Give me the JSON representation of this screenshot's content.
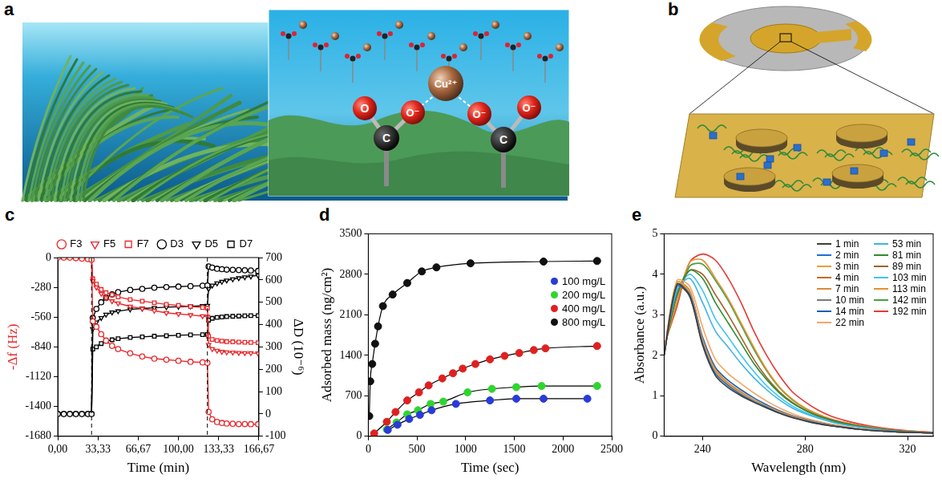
{
  "diagrams": [
    {
      "panel_label": "a",
      "labels": {
        "ion": "Cu²⁺",
        "carbon": "C",
        "oxygen": "O",
        "oxygen_ion": "O⁻"
      }
    },
    {
      "panel_label": "b"
    }
  ],
  "chart_data": [
    {
      "panel_label": "c",
      "type": "line",
      "xlabel": "Time (min)",
      "ylabel": "-Δf (Hz)",
      "y2label": "ΔD (10⁻⁶)",
      "x": [
        0,
        5,
        10,
        15,
        20,
        25,
        28,
        29,
        32,
        36,
        40,
        45,
        50,
        60,
        70,
        80,
        90,
        100,
        110,
        120,
        124,
        125,
        128,
        132,
        136,
        140,
        145,
        150,
        155,
        160,
        166
      ],
      "xlim": [
        0,
        166.67
      ],
      "xticks": [
        {
          "value": 0,
          "label": "0,00"
        },
        {
          "value": 33.33,
          "label": "33,33"
        },
        {
          "value": 66.67,
          "label": "66,67"
        },
        {
          "value": 100,
          "label": "100,00"
        },
        {
          "value": 133.33,
          "label": "133,33"
        },
        {
          "value": 166.67,
          "label": "166,67"
        }
      ],
      "ylim": [
        -1680,
        0
      ],
      "yticks": [
        -1680,
        -1400,
        -1120,
        -840,
        -560,
        -280,
        0
      ],
      "y2lim": [
        -100,
        700
      ],
      "y2ticks": [
        -100,
        0,
        100,
        200,
        300,
        400,
        500,
        600,
        700
      ],
      "vlines": [
        28,
        124
      ],
      "grid": false,
      "legend": "top",
      "series": [
        {
          "name": "F3",
          "color": "#e8282b",
          "marker": "circle",
          "values": [
            0,
            0,
            0,
            -5,
            -10,
            -15,
            -20,
            -600,
            -650,
            -720,
            -780,
            -830,
            -860,
            -900,
            -930,
            -950,
            -960,
            -970,
            -980,
            -985,
            -990,
            -1450,
            -1520,
            -1545,
            -1555,
            -1560,
            -1562,
            -1565,
            -1565,
            -1566,
            -1566
          ]
        },
        {
          "name": "F5",
          "color": "#e8282b",
          "marker": "triangle_down",
          "values": [
            0,
            0,
            0,
            -5,
            -8,
            -12,
            -15,
            -220,
            -280,
            -340,
            -380,
            -410,
            -430,
            -460,
            -480,
            -500,
            -520,
            -530,
            -540,
            -550,
            -555,
            -820,
            -860,
            -875,
            -885,
            -890,
            -892,
            -895,
            -897,
            -898,
            -900
          ]
        },
        {
          "name": "F7",
          "color": "#e8282b",
          "marker": "square",
          "values": [
            0,
            0,
            0,
            -3,
            -6,
            -10,
            -12,
            -200,
            -250,
            -300,
            -330,
            -350,
            -370,
            -395,
            -410,
            -425,
            -440,
            -450,
            -460,
            -470,
            -475,
            -740,
            -770,
            -780,
            -785,
            -790,
            -792,
            -795,
            -797,
            -798,
            -800
          ]
        },
        {
          "name": "D3",
          "color": "#000000",
          "marker": "circle",
          "axis": "y2",
          "values": [
            0,
            0,
            0,
            0,
            0,
            0,
            0,
            430,
            470,
            500,
            520,
            535,
            545,
            555,
            560,
            565,
            568,
            570,
            572,
            574,
            575,
            660,
            655,
            650,
            648,
            646,
            645,
            644,
            643,
            642,
            640
          ]
        },
        {
          "name": "D5",
          "color": "#000000",
          "marker": "triangle_down",
          "axis": "y2",
          "values": [
            0,
            0,
            0,
            0,
            0,
            0,
            0,
            380,
            410,
            430,
            445,
            455,
            460,
            468,
            472,
            475,
            478,
            480,
            482,
            484,
            485,
            560,
            575,
            585,
            592,
            598,
            603,
            608,
            612,
            616,
            620
          ]
        },
        {
          "name": "D7",
          "color": "#000000",
          "marker": "square",
          "axis": "y2",
          "values": [
            0,
            0,
            0,
            0,
            0,
            0,
            0,
            290,
            300,
            315,
            325,
            332,
            337,
            342,
            345,
            348,
            350,
            352,
            354,
            355,
            356,
            420,
            428,
            432,
            434,
            436,
            437,
            438,
            439,
            440,
            440
          ]
        }
      ]
    },
    {
      "panel_label": "d",
      "type": "scatter",
      "xlabel": "Time (sec)",
      "ylabel": "Adsorbed mass (ng/cm²)",
      "xlim": [
        0,
        2500
      ],
      "xticks": [
        0,
        500,
        1000,
        1500,
        2000,
        2500
      ],
      "ylim": [
        0,
        3500
      ],
      "yticks": [
        0,
        700,
        1400,
        2100,
        2800,
        3500
      ],
      "grid": false,
      "legend": "right",
      "marker": "circle",
      "line_style": "solid",
      "series": [
        {
          "name": "100 mg/L",
          "color": "#2a3bd6",
          "x": [
            200,
            300,
            420,
            530,
            650,
            900,
            1250,
            1520,
            1800,
            2250
          ],
          "values": [
            110,
            200,
            300,
            370,
            450,
            560,
            620,
            650,
            650,
            650
          ]
        },
        {
          "name": "200 mg/L",
          "color": "#2fd52f",
          "x": [
            190,
            290,
            400,
            510,
            640,
            770,
            1020,
            1270,
            1520,
            1780,
            2350
          ],
          "values": [
            120,
            240,
            380,
            450,
            560,
            600,
            760,
            820,
            850,
            870,
            870
          ]
        },
        {
          "name": "400 mg/L",
          "color": "#e02020",
          "x": [
            60,
            190,
            280,
            400,
            520,
            620,
            760,
            870,
            970,
            1100,
            1250,
            1400,
            1550,
            1700,
            1820,
            2350
          ],
          "values": [
            50,
            250,
            420,
            620,
            760,
            880,
            1000,
            1090,
            1170,
            1250,
            1330,
            1390,
            1440,
            1490,
            1520,
            1560
          ]
        },
        {
          "name": "800 mg/L",
          "color": "#111111",
          "x": [
            10,
            20,
            40,
            70,
            100,
            150,
            250,
            400,
            550,
            700,
            1050,
            1800,
            2350
          ],
          "values": [
            350,
            950,
            1250,
            1600,
            1900,
            2250,
            2450,
            2650,
            2850,
            2920,
            2990,
            3020,
            3030
          ]
        }
      ]
    },
    {
      "panel_label": "e",
      "type": "line",
      "xlabel": "Wavelength (nm)",
      "ylabel": "Absorbance (a.u.)",
      "x": [
        225,
        230,
        235,
        240,
        245,
        250,
        255,
        260,
        265,
        270,
        275,
        280,
        285,
        290,
        295,
        300,
        305,
        310,
        315,
        320,
        325,
        330
      ],
      "xlim": [
        225,
        330
      ],
      "xticks": [
        240,
        280,
        320
      ],
      "ylim": [
        0,
        5
      ],
      "yticks": [
        0,
        1,
        2,
        3,
        4,
        5
      ],
      "grid": false,
      "legend": "upper right",
      "marker": "none",
      "series": [
        {
          "name": "1 min",
          "color": "#3d3d3d",
          "values": [
            2.0,
            3.75,
            3.45,
            2.25,
            1.5,
            1.2,
            1.0,
            0.84,
            0.7,
            0.57,
            0.46,
            0.38,
            0.31,
            0.26,
            0.22,
            0.18,
            0.15,
            0.13,
            0.11,
            0.1,
            0.09,
            0.08
          ]
        },
        {
          "name": "2 min",
          "color": "#1f6fd1",
          "values": [
            2.0,
            3.7,
            3.5,
            2.3,
            1.55,
            1.25,
            1.03,
            0.86,
            0.72,
            0.58,
            0.47,
            0.39,
            0.32,
            0.26,
            0.22,
            0.18,
            0.15,
            0.13,
            0.11,
            0.1,
            0.09,
            0.08
          ]
        },
        {
          "name": "3 min",
          "color": "#e5a03a",
          "values": [
            2.05,
            3.8,
            3.55,
            2.35,
            1.6,
            1.28,
            1.06,
            0.88,
            0.73,
            0.6,
            0.48,
            0.4,
            0.33,
            0.27,
            0.22,
            0.19,
            0.16,
            0.13,
            0.11,
            0.1,
            0.09,
            0.08
          ]
        },
        {
          "name": "4 min",
          "color": "#c96a28",
          "values": [
            2.0,
            3.75,
            3.5,
            2.3,
            1.58,
            1.27,
            1.05,
            0.87,
            0.72,
            0.59,
            0.48,
            0.39,
            0.32,
            0.27,
            0.22,
            0.18,
            0.15,
            0.13,
            0.11,
            0.1,
            0.09,
            0.08
          ]
        },
        {
          "name": "7 min",
          "color": "#d98a3a",
          "values": [
            2.05,
            3.8,
            3.6,
            2.4,
            1.65,
            1.32,
            1.1,
            0.9,
            0.75,
            0.61,
            0.5,
            0.41,
            0.33,
            0.27,
            0.23,
            0.19,
            0.16,
            0.13,
            0.11,
            0.1,
            0.09,
            0.08
          ]
        },
        {
          "name": "10 min",
          "color": "#7a7a7a",
          "values": [
            2.0,
            3.7,
            3.45,
            2.3,
            1.6,
            1.3,
            1.08,
            0.9,
            0.74,
            0.6,
            0.49,
            0.4,
            0.33,
            0.27,
            0.22,
            0.19,
            0.16,
            0.13,
            0.11,
            0.1,
            0.09,
            0.08
          ]
        },
        {
          "name": "14 min",
          "color": "#1a5fb4",
          "values": [
            2.05,
            3.75,
            3.55,
            2.45,
            1.7,
            1.38,
            1.15,
            0.95,
            0.78,
            0.63,
            0.51,
            0.42,
            0.34,
            0.28,
            0.23,
            0.19,
            0.16,
            0.14,
            0.12,
            0.1,
            0.09,
            0.08
          ]
        },
        {
          "name": "22 min",
          "color": "#f2a766",
          "values": [
            2.1,
            3.85,
            3.7,
            2.7,
            1.9,
            1.55,
            1.3,
            1.07,
            0.87,
            0.7,
            0.56,
            0.45,
            0.37,
            0.3,
            0.25,
            0.2,
            0.17,
            0.14,
            0.12,
            0.1,
            0.09,
            0.08
          ]
        },
        {
          "name": "53 min",
          "color": "#3db3e6",
          "values": [
            2.1,
            3.6,
            3.9,
            3.3,
            2.6,
            2.2,
            1.8,
            1.45,
            1.15,
            0.9,
            0.7,
            0.56,
            0.45,
            0.36,
            0.29,
            0.24,
            0.2,
            0.16,
            0.13,
            0.11,
            0.1,
            0.09
          ]
        },
        {
          "name": "81 min",
          "color": "#2e8b2e",
          "values": [
            2.15,
            3.5,
            4.1,
            3.9,
            3.3,
            2.8,
            2.3,
            1.8,
            1.4,
            1.07,
            0.82,
            0.64,
            0.5,
            0.4,
            0.32,
            0.26,
            0.21,
            0.17,
            0.14,
            0.12,
            0.1,
            0.09
          ]
        },
        {
          "name": "89 min",
          "color": "#a0622a",
          "values": [
            2.15,
            3.45,
            4.1,
            4.0,
            3.5,
            3.0,
            2.45,
            1.9,
            1.45,
            1.1,
            0.84,
            0.65,
            0.51,
            0.41,
            0.33,
            0.27,
            0.22,
            0.18,
            0.15,
            0.12,
            0.1,
            0.09
          ]
        },
        {
          "name": "103 min",
          "color": "#40c4f0",
          "values": [
            2.1,
            3.55,
            4.0,
            3.6,
            2.9,
            2.45,
            2.0,
            1.6,
            1.25,
            0.97,
            0.75,
            0.59,
            0.47,
            0.37,
            0.3,
            0.25,
            0.2,
            0.16,
            0.13,
            0.11,
            0.1,
            0.09
          ]
        },
        {
          "name": "113 min",
          "color": "#e8902a",
          "values": [
            2.2,
            3.3,
            4.3,
            4.35,
            3.9,
            3.4,
            2.8,
            2.2,
            1.65,
            1.22,
            0.92,
            0.7,
            0.55,
            0.43,
            0.35,
            0.28,
            0.23,
            0.19,
            0.15,
            0.13,
            0.11,
            0.09
          ]
        },
        {
          "name": "142 min",
          "color": "#43a047",
          "values": [
            2.2,
            3.3,
            4.2,
            4.25,
            3.85,
            3.35,
            2.75,
            2.15,
            1.62,
            1.2,
            0.9,
            0.69,
            0.54,
            0.42,
            0.34,
            0.28,
            0.23,
            0.18,
            0.15,
            0.12,
            0.1,
            0.09
          ]
        },
        {
          "name": "192 min",
          "color": "#e53935",
          "values": [
            2.25,
            3.2,
            4.3,
            4.5,
            4.35,
            3.9,
            3.3,
            2.6,
            2.0,
            1.5,
            1.1,
            0.85,
            0.65,
            0.5,
            0.4,
            0.32,
            0.26,
            0.21,
            0.17,
            0.14,
            0.12,
            0.1
          ]
        }
      ]
    }
  ]
}
